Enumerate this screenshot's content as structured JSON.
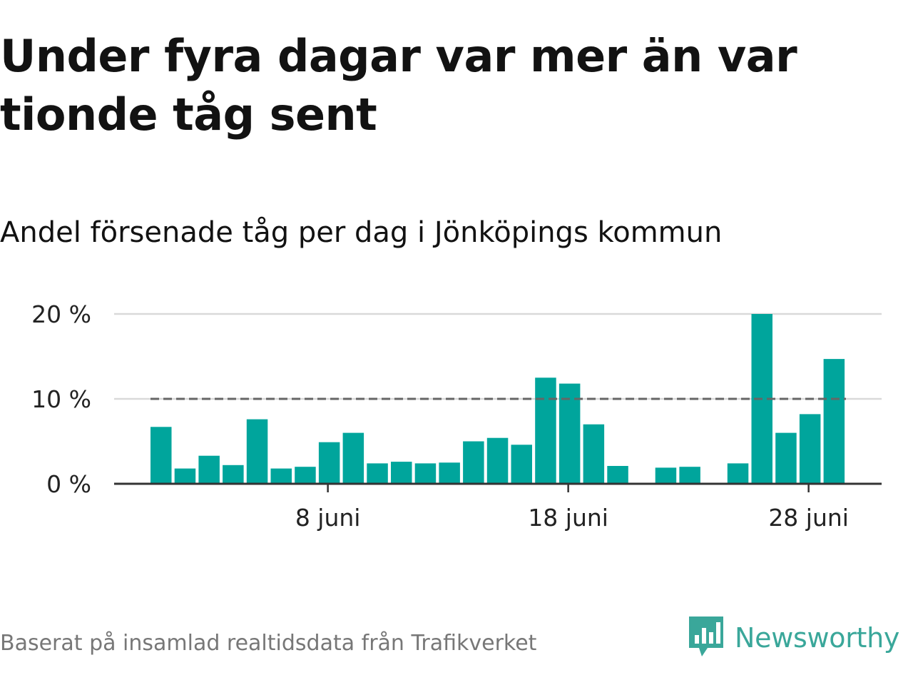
{
  "title": "Under fyra dagar var mer än var tionde tåg sent",
  "subtitle": "Andel försenade tåg per dag i Jönköpings kommun",
  "source": "Baserat på insamlad realtidsdata från Trafikverket",
  "brand": {
    "name": "Newsworthy",
    "icon": "newsworthy-logo-icon",
    "color": "#3aa79a"
  },
  "colors": {
    "bar": "#00a59c",
    "grid": "#d9d9d9",
    "baseline": "#333333",
    "reference": "#666666"
  },
  "chart_data": {
    "type": "bar",
    "categories": [
      "1 juni",
      "2 juni",
      "3 juni",
      "4 juni",
      "5 juni",
      "6 juni",
      "7 juni",
      "8 juni",
      "9 juni",
      "10 juni",
      "11 juni",
      "12 juni",
      "13 juni",
      "14 juni",
      "15 juni",
      "16 juni",
      "17 juni",
      "18 juni",
      "19 juni",
      "20 juni",
      "21 juni",
      "22 juni",
      "23 juni",
      "24 juni",
      "25 juni",
      "26 juni",
      "27 juni",
      "28 juni",
      "29 juni"
    ],
    "values": [
      6.7,
      1.8,
      3.3,
      2.2,
      7.6,
      1.8,
      2.0,
      4.9,
      6.0,
      2.4,
      2.6,
      2.4,
      2.5,
      5.0,
      5.4,
      4.6,
      12.5,
      11.8,
      7.0,
      2.1,
      null,
      1.9,
      2.0,
      null,
      2.4,
      20.0,
      6.0,
      8.2,
      14.7
    ],
    "ylim": [
      0,
      20
    ],
    "yticks": [
      0,
      10,
      20
    ],
    "ytick_labels": [
      "0 %",
      "10 %",
      "20 %"
    ],
    "xtick_labels": [
      {
        "category": "8 juni",
        "label": "8 juni"
      },
      {
        "category": "18 juni",
        "label": "18 juni"
      },
      {
        "category": "28 juni",
        "label": "28 juni"
      }
    ],
    "reference_line": {
      "value": 10,
      "style": "dashed"
    },
    "grid": true,
    "legend": false,
    "xlabel": "",
    "ylabel": ""
  }
}
